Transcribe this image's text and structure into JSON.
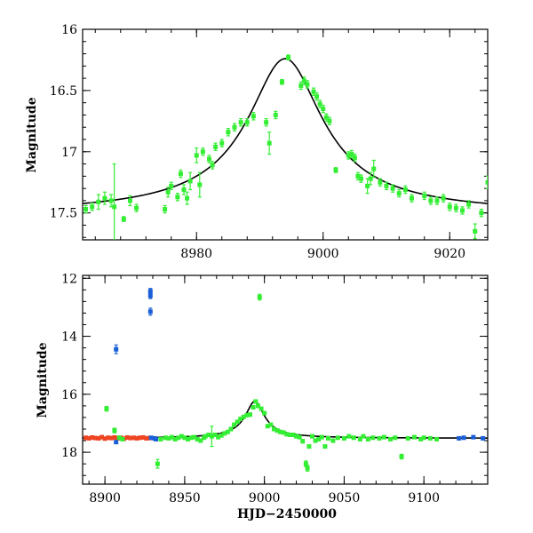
{
  "chart_data": [
    {
      "type": "scatter",
      "title": "",
      "xlabel": "",
      "ylabel": "Magnitude",
      "xlim": [
        8962,
        9026
      ],
      "ylim": [
        17.72,
        16.0
      ],
      "y_inverted": true,
      "grid": false,
      "xticks": [
        {
          "value": 8980,
          "label": "8980"
        },
        {
          "value": 9000,
          "label": "9000"
        },
        {
          "value": 9020,
          "label": "9020"
        }
      ],
      "yticks": [
        {
          "value": 16.0,
          "label": "16"
        },
        {
          "value": 16.5,
          "label": "16.5"
        },
        {
          "value": 17.0,
          "label": "17"
        },
        {
          "value": 17.5,
          "label": "17.5"
        }
      ],
      "model": {
        "color": "#000000",
        "t0": 8994,
        "width": 6.5,
        "base": 17.52,
        "peak": 16.24,
        "power": 0.8
      },
      "series": [
        {
          "color": "#33ee33",
          "points": [
            [
              8962.5,
              17.47,
              0.03
            ],
            [
              8963.5,
              17.45,
              0.03
            ],
            [
              8964.5,
              17.41,
              0.06
            ],
            [
              8965.5,
              17.38,
              0.05
            ],
            [
              8966.5,
              17.4,
              0.05
            ],
            [
              8967,
              17.45,
              0.35
            ],
            [
              8968.5,
              17.55,
              0.02
            ],
            [
              8969.5,
              17.4,
              0.04
            ],
            [
              8970.5,
              17.46,
              0.03
            ],
            [
              8975,
              17.47,
              0.03
            ],
            [
              8975.5,
              17.33,
              0.04
            ],
            [
              8976,
              17.28,
              0.03
            ],
            [
              8977,
              17.37,
              0.03
            ],
            [
              8977.5,
              17.18,
              0.03
            ],
            [
              8978,
              17.31,
              0.04
            ],
            [
              8978.5,
              17.38,
              0.05
            ],
            [
              8979,
              17.24,
              0.07
            ],
            [
              8980,
              17.03,
              0.06
            ],
            [
              8980.5,
              17.27,
              0.1
            ],
            [
              8981,
              17.0,
              0.03
            ],
            [
              8982,
              17.06,
              0.03
            ],
            [
              8982.5,
              17.11,
              0.03
            ],
            [
              8983,
              16.96,
              0.03
            ],
            [
              8984,
              16.93,
              0.03
            ],
            [
              8985,
              16.84,
              0.03
            ],
            [
              8986,
              16.8,
              0.03
            ],
            [
              8987,
              16.76,
              0.03
            ],
            [
              8988,
              16.76,
              0.03
            ],
            [
              8989,
              16.71,
              0.03
            ],
            [
              8991,
              16.76,
              0.03
            ],
            [
              8991.5,
              16.93,
              0.09
            ],
            [
              8992.5,
              16.7,
              0.03
            ],
            [
              8993.5,
              16.43,
              0.02
            ],
            [
              8994.5,
              16.23,
              0.02
            ],
            [
              8996.5,
              16.46,
              0.03
            ],
            [
              8997,
              16.42,
              0.03
            ],
            [
              8997.5,
              16.45,
              0.03
            ],
            [
              8998.5,
              16.51,
              0.03
            ],
            [
              8999,
              16.55,
              0.03
            ],
            [
              8999.5,
              16.61,
              0.03
            ],
            [
              9000,
              16.65,
              0.03
            ],
            [
              9000.5,
              16.72,
              0.03
            ],
            [
              9001,
              16.75,
              0.03
            ],
            [
              9002,
              17.15,
              0.02
            ],
            [
              9004,
              17.03,
              0.03
            ],
            [
              9004.5,
              17.02,
              0.03
            ],
            [
              9005,
              17.05,
              0.03
            ],
            [
              9005.5,
              17.2,
              0.03
            ],
            [
              9006,
              17.22,
              0.03
            ],
            [
              9007,
              17.28,
              0.06
            ],
            [
              9007.5,
              17.22,
              0.05
            ],
            [
              9008,
              17.14,
              0.07
            ],
            [
              9009,
              17.25,
              0.03
            ],
            [
              9010,
              17.28,
              0.03
            ],
            [
              9011,
              17.3,
              0.03
            ],
            [
              9012,
              17.34,
              0.03
            ],
            [
              9013,
              17.31,
              0.03
            ],
            [
              9014,
              17.38,
              0.03
            ],
            [
              9016,
              17.36,
              0.03
            ],
            [
              9017,
              17.4,
              0.03
            ],
            [
              9018,
              17.4,
              0.03
            ],
            [
              9019,
              17.38,
              0.03
            ],
            [
              9020,
              17.45,
              0.03
            ],
            [
              9021,
              17.46,
              0.03
            ],
            [
              9022,
              17.48,
              0.03
            ],
            [
              9023,
              17.43,
              0.03
            ],
            [
              9024,
              17.65,
              0.06
            ],
            [
              9025,
              17.5,
              0.03
            ],
            [
              9026,
              17.25,
              0.05
            ]
          ]
        }
      ]
    },
    {
      "type": "scatter",
      "title": "",
      "xlabel": "HJD−2450000",
      "ylabel": "Magnitude",
      "xlim": [
        8886,
        9140
      ],
      "ylim": [
        19.1,
        11.9
      ],
      "y_inverted": true,
      "grid": false,
      "xticks": [
        {
          "value": 8900,
          "label": "8900"
        },
        {
          "value": 8950,
          "label": "8950"
        },
        {
          "value": 9000,
          "label": "9000"
        },
        {
          "value": 9050,
          "label": "9050"
        },
        {
          "value": 9100,
          "label": "9100"
        }
      ],
      "yticks": [
        {
          "value": 12,
          "label": "12"
        },
        {
          "value": 14,
          "label": "14"
        },
        {
          "value": 16,
          "label": "16"
        },
        {
          "value": 18,
          "label": "18"
        }
      ],
      "model": {
        "color": "#000000",
        "t0": 8994,
        "width": 6.5,
        "base": 17.52,
        "peak": 16.24,
        "power": 0.8
      },
      "series": [
        {
          "color": "#ee4422",
          "points": [
            [
              8888,
              17.5,
              0.02
            ],
            [
              8890,
              17.52,
              0.02
            ],
            [
              8892,
              17.49,
              0.02
            ],
            [
              8894,
              17.51,
              0.02
            ],
            [
              8896,
              17.52,
              0.02
            ],
            [
              8898,
              17.48,
              0.02
            ],
            [
              8900,
              17.53,
              0.02
            ],
            [
              8902,
              17.5,
              0.02
            ],
            [
              8904,
              17.51,
              0.02
            ],
            [
              8906,
              17.49,
              0.02
            ],
            [
              8908,
              17.52,
              0.02
            ],
            [
              8910,
              17.5,
              0.02
            ],
            [
              8912,
              17.53,
              0.02
            ],
            [
              8914,
              17.49,
              0.02
            ],
            [
              8916,
              17.51,
              0.02
            ],
            [
              8918,
              17.5,
              0.02
            ],
            [
              8920,
              17.52,
              0.02
            ],
            [
              8922,
              17.5,
              0.02
            ],
            [
              8924,
              17.49,
              0.02
            ],
            [
              8926,
              17.52,
              0.02
            ],
            [
              8928,
              17.51,
              0.02
            ]
          ]
        },
        {
          "color": "#1a5fd8",
          "points": [
            [
              8907,
              14.45,
              0.15
            ],
            [
              8928.5,
              12.45,
              0.1
            ],
            [
              8928.5,
              12.6,
              0.1
            ],
            [
              8928.5,
              13.15,
              0.12
            ],
            [
              8907,
              17.65,
              0.03
            ],
            [
              8929,
              17.5,
              0.03
            ],
            [
              8931,
              17.52,
              0.03
            ],
            [
              8932,
              17.55,
              0.03
            ],
            [
              9122,
              17.52,
              0.03
            ],
            [
              9125,
              17.5,
              0.03
            ],
            [
              9131,
              17.48,
              0.03
            ],
            [
              9137,
              17.52,
              0.03
            ]
          ]
        },
        {
          "color": "#33ee33",
          "points": [
            [
              8901,
              16.5,
              0.08
            ],
            [
              8906,
              17.25,
              0.08
            ],
            [
              8909,
              17.5,
              0.05
            ],
            [
              8911,
              17.55,
              0.05
            ],
            [
              8933,
              18.4,
              0.15
            ],
            [
              8935,
              17.55,
              0.05
            ],
            [
              8938,
              17.5,
              0.05
            ],
            [
              8940,
              17.52,
              0.05
            ],
            [
              8942,
              17.48,
              0.05
            ],
            [
              8944,
              17.55,
              0.05
            ],
            [
              8946,
              17.5,
              0.05
            ],
            [
              8948,
              17.45,
              0.05
            ],
            [
              8950,
              17.5,
              0.05
            ],
            [
              8952,
              17.55,
              0.05
            ],
            [
              8954,
              17.5,
              0.05
            ],
            [
              8956,
              17.48,
              0.05
            ],
            [
              8958,
              17.55,
              0.05
            ],
            [
              8960,
              17.6,
              0.05
            ],
            [
              8962,
              17.5,
              0.05
            ],
            [
              8963,
              17.45,
              0.05
            ],
            [
              8965,
              17.4,
              0.05
            ],
            [
              8967,
              17.45,
              0.35
            ],
            [
              8969,
              17.4,
              0.05
            ],
            [
              8971,
              17.48,
              0.05
            ],
            [
              8973,
              17.42,
              0.05
            ],
            [
              8975,
              17.35,
              0.05
            ],
            [
              8977,
              17.3,
              0.05
            ],
            [
              8979,
              17.2,
              0.06
            ],
            [
              8981,
              17.05,
              0.05
            ],
            [
              8983,
              16.95,
              0.05
            ],
            [
              8985,
              16.85,
              0.05
            ],
            [
              8987,
              16.78,
              0.05
            ],
            [
              8989,
              16.72,
              0.05
            ],
            [
              8991,
              16.7,
              0.05
            ],
            [
              8993,
              16.45,
              0.05
            ],
            [
              8994.5,
              16.25,
              0.05
            ],
            [
              8996,
              16.4,
              0.05
            ],
            [
              8997,
              12.65,
              0.1
            ],
            [
              8998,
              16.5,
              0.05
            ],
            [
              9000,
              16.65,
              0.05
            ],
            [
              9002,
              17.1,
              0.05
            ],
            [
              9004,
              17.05,
              0.05
            ],
            [
              9006,
              17.2,
              0.05
            ],
            [
              9008,
              17.25,
              0.05
            ],
            [
              9010,
              17.3,
              0.05
            ],
            [
              9012,
              17.32,
              0.05
            ],
            [
              9014,
              17.38,
              0.05
            ],
            [
              9016,
              17.4,
              0.05
            ],
            [
              9018,
              17.4,
              0.05
            ],
            [
              9020,
              17.45,
              0.05
            ],
            [
              9022,
              17.48,
              0.05
            ],
            [
              9024,
              17.62,
              0.06
            ],
            [
              9026,
              18.4,
              0.1
            ],
            [
              9027,
              18.55,
              0.1
            ],
            [
              9028,
              17.8,
              0.05
            ],
            [
              9030,
              17.45,
              0.05
            ],
            [
              9032,
              17.6,
              0.05
            ],
            [
              9034,
              17.55,
              0.05
            ],
            [
              9036,
              17.48,
              0.05
            ],
            [
              9038,
              17.8,
              0.05
            ],
            [
              9040,
              17.52,
              0.05
            ],
            [
              9043,
              17.6,
              0.05
            ],
            [
              9046,
              17.5,
              0.05
            ],
            [
              9050,
              17.52,
              0.05
            ],
            [
              9053,
              17.45,
              0.05
            ],
            [
              9056,
              17.5,
              0.05
            ],
            [
              9060,
              17.55,
              0.05
            ],
            [
              9062,
              17.45,
              0.05
            ],
            [
              9065,
              17.55,
              0.05
            ],
            [
              9068,
              17.5,
              0.05
            ],
            [
              9072,
              17.52,
              0.05
            ],
            [
              9075,
              17.48,
              0.05
            ],
            [
              9079,
              17.55,
              0.05
            ],
            [
              9082,
              17.5,
              0.05
            ],
            [
              9086,
              18.15,
              0.08
            ],
            [
              9090,
              17.52,
              0.05
            ],
            [
              9094,
              17.48,
              0.05
            ],
            [
              9098,
              17.55,
              0.05
            ],
            [
              9100,
              17.5,
              0.05
            ],
            [
              9104,
              17.52,
              0.05
            ],
            [
              9108,
              17.55,
              0.05
            ]
          ]
        }
      ]
    }
  ]
}
